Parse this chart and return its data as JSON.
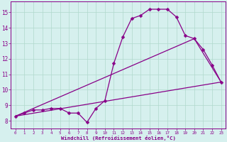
{
  "xlabel": "Windchill (Refroidissement éolien,°C)",
  "xlim": [
    -0.5,
    23.5
  ],
  "ylim": [
    7.5,
    15.7
  ],
  "xticks": [
    0,
    1,
    2,
    3,
    4,
    5,
    6,
    7,
    8,
    9,
    10,
    11,
    12,
    13,
    14,
    15,
    16,
    17,
    18,
    19,
    20,
    21,
    22,
    23
  ],
  "yticks": [
    8,
    9,
    10,
    11,
    12,
    13,
    14,
    15
  ],
  "bg_color": "#d6f0ee",
  "grid_color": "#b0d8cc",
  "line_color": "#880088",
  "line1_x": [
    0,
    1,
    2,
    3,
    4,
    5,
    6,
    7,
    8,
    9,
    10,
    11,
    12,
    13,
    14,
    15,
    16,
    17,
    18,
    19,
    20,
    21,
    22,
    23
  ],
  "line1_y": [
    8.3,
    8.5,
    8.7,
    8.7,
    8.8,
    8.8,
    8.5,
    8.5,
    7.9,
    8.8,
    9.3,
    11.7,
    13.4,
    14.6,
    14.8,
    15.2,
    15.2,
    15.2,
    14.7,
    13.5,
    13.3,
    12.6,
    11.6,
    10.5
  ],
  "line2_x": [
    0,
    23
  ],
  "line2_y": [
    8.3,
    10.5
  ],
  "line3_x": [
    0,
    20,
    23
  ],
  "line3_y": [
    8.3,
    13.3,
    10.5
  ],
  "marker": "D",
  "markersize": 2.5,
  "linewidth": 0.9,
  "xtick_fontsize": 4.2,
  "ytick_fontsize": 5.5,
  "xlabel_fontsize": 5.2
}
